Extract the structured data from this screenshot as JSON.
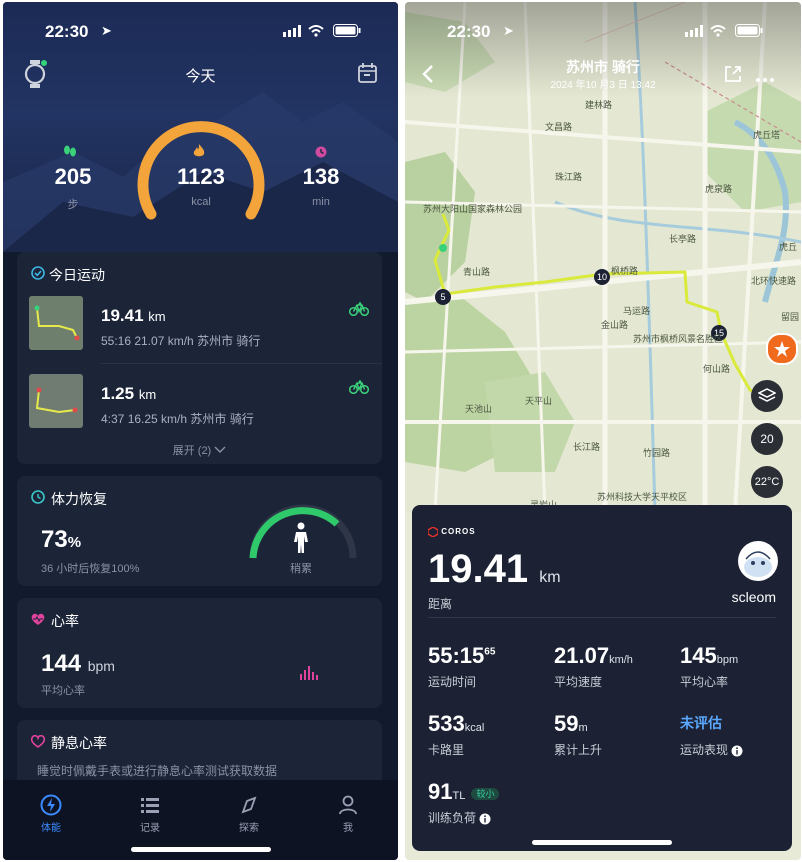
{
  "status": {
    "time": "22:30"
  },
  "left": {
    "title": "今天",
    "ring": {
      "steps": "205",
      "steps_unit": "步",
      "kcal": "1123",
      "kcal_unit": "kcal",
      "minutes": "138",
      "minutes_unit": "min"
    },
    "today": {
      "title": "今日运动",
      "items": [
        {
          "dist": "19.41",
          "unit": "km",
          "detail": "55:16  21.07 km/h 苏州市 骑行"
        },
        {
          "dist": "1.25",
          "unit": "km",
          "detail": "4:37  16.25 km/h 苏州市 骑行"
        }
      ],
      "expand": "展开 (2)"
    },
    "recovery": {
      "title": "体力恢复",
      "value": "73",
      "unit": "%",
      "sub": "36 小时后恢复100%",
      "state": "稍累",
      "fraction": 0.73
    },
    "heart": {
      "title": "心率",
      "value": "144",
      "unit": "bpm",
      "label": "平均心率"
    },
    "resting": {
      "title": "静息心率",
      "text": "睡觉时佩戴手表或进行静息心率测试获取数据"
    },
    "nav": [
      {
        "label": "体能"
      },
      {
        "label": "记录"
      },
      {
        "label": "探索"
      },
      {
        "label": "我"
      }
    ]
  },
  "right": {
    "title": "苏州市 骑行",
    "subtitle": "2024 年10 月3 日 13:42",
    "map_labels": [
      "苏州大阳山国家森林公园",
      "天池山",
      "天平山",
      "灵岩山",
      "虎丘塔",
      "虎丘",
      "留园",
      "苏州市枫桥风景名胜区",
      "苏州科技大学天平校区",
      "青山路",
      "马运路",
      "竹园路",
      "金山路",
      "枫桥路",
      "长江路",
      "建林路",
      "何山路",
      "长亭路",
      "珠江路",
      "虎泉路",
      "北环快速路",
      "文昌路"
    ],
    "km_markers": [
      "5",
      "10",
      "15"
    ],
    "temps": [
      "20",
      "22°C"
    ],
    "brand": "COROS",
    "distance": "19.41",
    "distance_unit": "km",
    "distance_label": "距离",
    "user": "scleom",
    "stats": [
      {
        "value": "55:15",
        "sup": "65",
        "unit": "",
        "label": "运动时间"
      },
      {
        "value": "21.07",
        "unit": "km/h",
        "label": "平均速度"
      },
      {
        "value": "145",
        "unit": "bpm",
        "label": "平均心率"
      },
      {
        "value": "533",
        "unit": "kcal",
        "label": "卡路里"
      },
      {
        "value": "59",
        "unit": "m",
        "label": "累计上升"
      },
      {
        "value": "未评估",
        "unit": "",
        "label": "运动表现"
      },
      {
        "value": "91",
        "unit": "TL",
        "badge": "较小",
        "label": "训练负荷"
      }
    ]
  }
}
